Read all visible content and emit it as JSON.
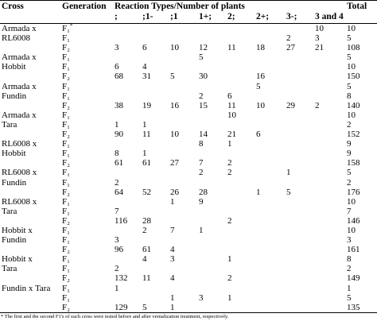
{
  "header": {
    "cross": "Cross",
    "generation": "Generation",
    "reaction": "Reaction Types/Number of plants",
    "total": "Total",
    "types": [
      ";",
      ";1-",
      ";1",
      "1+;",
      "2;",
      "2+;",
      "3-;",
      "3 and 4"
    ]
  },
  "rows": [
    {
      "cross": "Armada x",
      "gen": "F₁",
      "mark": "*",
      "cells": {
        "7": 10
      },
      "total": 10
    },
    {
      "cross": "RL6008",
      "gen": "F₁",
      "cells": {
        "6": 2,
        "7": 3
      },
      "total": 5
    },
    {
      "gen": "F₂",
      "cells": {
        "0": 3,
        "1": 6,
        "2": 10,
        "3": 12,
        "4": 11,
        "5": 18,
        "6": 27,
        "7": 21
      },
      "total": 108
    },
    {
      "cross": "Armada x",
      "gen": "F₁",
      "cells": {
        "3": 5
      },
      "total": 5
    },
    {
      "cross": "Hobbit",
      "gen": "F₁",
      "cells": {
        "0": 6,
        "1": 4
      },
      "total": 10
    },
    {
      "gen": "F₂",
      "cells": {
        "0": 68,
        "1": 31,
        "2": 5,
        "3": 30,
        "5": 16
      },
      "total": 150
    },
    {
      "cross": "Armada x",
      "gen": "F₁",
      "cells": {
        "5": 5
      },
      "total": 5
    },
    {
      "cross": "Fundin",
      "gen": "F₁",
      "cells": {
        "3": 2,
        "4": 6
      },
      "total": 8
    },
    {
      "gen": "F₂",
      "cells": {
        "0": 38,
        "1": 19,
        "2": 16,
        "3": 15,
        "4": 11,
        "5": 10,
        "6": 29,
        "7": 2
      },
      "total": 140
    },
    {
      "cross": "Armada x",
      "gen": "F₁",
      "cells": {
        "4": 10
      },
      "total": 10
    },
    {
      "cross": "Tara",
      "gen": "F₁",
      "cells": {
        "0": 1,
        "1": 1
      },
      "total": 2
    },
    {
      "gen": "F₂",
      "cells": {
        "0": 90,
        "1": 11,
        "2": 10,
        "3": 14,
        "4": 21,
        "5": 6
      },
      "total": 152
    },
    {
      "cross": "RL6008 x",
      "gen": "F₁",
      "cells": {
        "3": 8,
        "4": 1
      },
      "total": 9
    },
    {
      "cross": "Hobbit",
      "gen": "F₁",
      "cells": {
        "0": 8,
        "1": 1
      },
      "total": 9
    },
    {
      "gen": "F₂",
      "cells": {
        "0": 61,
        "1": 61,
        "2": 27,
        "3": 7,
        "4": 2
      },
      "total": 158
    },
    {
      "cross": "RL6008 x",
      "gen": "F₁",
      "cells": {
        "3": 2,
        "4": 2,
        "6": 1
      },
      "total": 5
    },
    {
      "cross": "Fundin",
      "gen": "F₁",
      "cells": {
        "0": 2
      },
      "total": 2
    },
    {
      "gen": "F₂",
      "cells": {
        "0": 64,
        "1": 52,
        "2": 26,
        "3": 28,
        "5": 1,
        "6": 5
      },
      "total": 176
    },
    {
      "cross": "RL6008 x",
      "gen": "F₁",
      "cells": {
        "2": 1,
        "3": 9
      },
      "total": 10
    },
    {
      "cross": "Tara",
      "gen": "F₁",
      "cells": {
        "0": 7
      },
      "total": 7
    },
    {
      "gen": "F₂",
      "cells": {
        "0": 116,
        "1": 28,
        "4": 2
      },
      "total": 146
    },
    {
      "cross": "Hobbit x",
      "gen": "F₁",
      "cells": {
        "1": 2,
        "2": 7,
        "3": 1
      },
      "total": 10
    },
    {
      "cross": "Fundin",
      "gen": "F₁",
      "cells": {
        "0": 3
      },
      "total": 3
    },
    {
      "gen": "F₂",
      "cells": {
        "0": 96,
        "1": 61,
        "2": 4
      },
      "total": 161
    },
    {
      "cross": "Hobbit x",
      "gen": "F₁",
      "cells": {
        "1": 4,
        "2": 3,
        "4": 1
      },
      "total": 8
    },
    {
      "cross": "Tara",
      "gen": "F₁",
      "cells": {
        "0": 2
      },
      "total": 2
    },
    {
      "gen": "F₂",
      "cells": {
        "0": 132,
        "1": 11,
        "2": 4,
        "4": 2
      },
      "total": 149
    },
    {
      "cross": "Fundin x Tara",
      "gen": "F₁",
      "cells": {
        "0": 1
      },
      "total": 1
    },
    {
      "gen": "F₁",
      "cells": {
        "2": 1,
        "3": 3,
        "4": 1
      },
      "total": 5
    },
    {
      "gen": "F₂",
      "cells": {
        "0": 129,
        "1": 5,
        "2": 1
      },
      "total": 135
    }
  ],
  "footnote": "* The first and the second F1's of each cross were tested before and after vernalization treatment, respectively."
}
